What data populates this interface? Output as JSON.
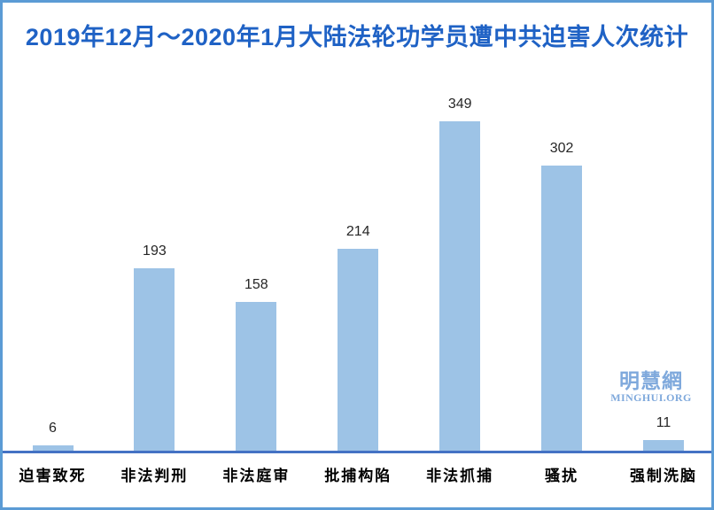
{
  "page": {
    "background": "#ffffff",
    "border_color": "#5B9BD5"
  },
  "title": {
    "text": "2019年12月～2020年1月大陆法轮功学员遭中共迫害人次统计",
    "color": "#1F62C5"
  },
  "watermark": {
    "cjk": "明慧網",
    "latin": "MINGHUI.ORG",
    "color": "#7FA9DC"
  },
  "chart_data": {
    "type": "bar",
    "title": "2019年12月～2020年1月大陆法轮功学员遭中共迫害人次统计",
    "categories": [
      "迫害致死",
      "非法判刑",
      "非法庭审",
      "批捕构陷",
      "非法抓捕",
      "骚扰",
      "强制洗脑"
    ],
    "values": [
      6,
      193,
      158,
      214,
      349,
      302,
      11
    ],
    "xlabel": "",
    "ylabel": "",
    "ylim": [
      0,
      400
    ],
    "grid": false,
    "legend": "none",
    "data_labels": true,
    "bar_color": "#9DC3E6",
    "axis_line_color": "#4472C4",
    "value_label_color": "#262626",
    "category_label_color": "#000000"
  }
}
